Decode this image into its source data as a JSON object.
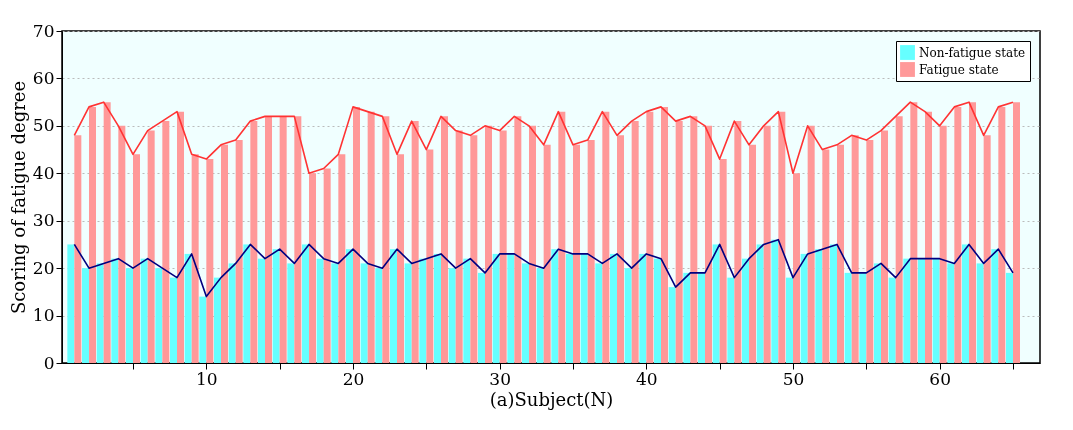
{
  "chart_data": {
    "type": "bar",
    "xlabel": "(a)Subject(N)",
    "ylabel": "Scoring of fatigue degree",
    "x": [
      1,
      2,
      3,
      4,
      5,
      6,
      7,
      8,
      9,
      10,
      11,
      12,
      13,
      14,
      15,
      16,
      17,
      18,
      19,
      20,
      21,
      22,
      23,
      24,
      25,
      26,
      27,
      28,
      29,
      30,
      31,
      32,
      33,
      34,
      35,
      36,
      37,
      38,
      39,
      40,
      41,
      42,
      43,
      44,
      45,
      46,
      47,
      48,
      49,
      50,
      51,
      52,
      53,
      54,
      55,
      56,
      57,
      58,
      59,
      60,
      61,
      62,
      63,
      64,
      65
    ],
    "series": [
      {
        "name": "Non-fatigue state",
        "color": "#66ffff",
        "values": [
          25,
          20,
          21,
          22,
          20,
          22,
          20,
          18,
          23,
          14,
          18,
          21,
          25,
          22,
          24,
          21,
          25,
          22,
          21,
          24,
          21,
          20,
          24,
          21,
          22,
          23,
          20,
          22,
          19,
          23,
          23,
          21,
          20,
          24,
          23,
          23,
          21,
          23,
          20,
          23,
          22,
          16,
          19,
          19,
          25,
          18,
          22,
          25,
          26,
          18,
          23,
          24,
          25,
          19,
          19,
          21,
          18,
          22,
          22,
          22,
          21,
          25,
          21,
          24,
          19
        ]
      },
      {
        "name": "Fatigue state",
        "color": "#ff9999",
        "values": [
          48,
          54,
          55,
          50,
          44,
          49,
          51,
          53,
          44,
          43,
          46,
          47,
          51,
          52,
          52,
          52,
          40,
          41,
          44,
          54,
          53,
          52,
          44,
          51,
          45,
          52,
          49,
          48,
          50,
          49,
          52,
          50,
          46,
          53,
          46,
          47,
          53,
          48,
          51,
          53,
          54,
          51,
          52,
          50,
          43,
          51,
          46,
          50,
          53,
          40,
          50,
          45,
          46,
          48,
          47,
          49,
          52,
          55,
          53,
          50,
          54,
          55,
          48,
          54,
          55
        ]
      },
      {
        "type": "line",
        "color": "#000080",
        "values": [
          25,
          20,
          21,
          22,
          20,
          22,
          20,
          18,
          23,
          14,
          18,
          21,
          25,
          22,
          24,
          21,
          25,
          22,
          21,
          24,
          21,
          20,
          24,
          21,
          22,
          23,
          20,
          22,
          19,
          23,
          23,
          21,
          20,
          24,
          23,
          23,
          21,
          23,
          20,
          23,
          22,
          16,
          19,
          19,
          25,
          18,
          22,
          25,
          26,
          18,
          23,
          24,
          25,
          19,
          19,
          21,
          18,
          22,
          22,
          22,
          21,
          25,
          21,
          24,
          19
        ]
      },
      {
        "type": "line",
        "color": "#ff3333",
        "values": [
          48,
          54,
          55,
          50,
          44,
          49,
          51,
          53,
          44,
          43,
          46,
          47,
          51,
          52,
          52,
          52,
          40,
          41,
          44,
          54,
          53,
          52,
          44,
          51,
          45,
          52,
          49,
          48,
          50,
          49,
          52,
          50,
          46,
          53,
          46,
          47,
          53,
          48,
          51,
          53,
          54,
          51,
          52,
          50,
          43,
          51,
          46,
          50,
          53,
          40,
          50,
          45,
          46,
          48,
          47,
          49,
          52,
          55,
          53,
          50,
          54,
          55,
          48,
          54,
          55
        ]
      }
    ],
    "xlim": [
      0.5,
      66.5
    ],
    "xticks": [
      {
        "value": 5,
        "label": null
      },
      10,
      {
        "value": 15,
        "label": null
      },
      20,
      {
        "value": 25,
        "label": null
      },
      30,
      {
        "value": 35,
        "label": null
      },
      40,
      {
        "value": 45,
        "label": null
      },
      50,
      {
        "value": 55,
        "label": null
      },
      60,
      {
        "value": 65,
        "label": null
      }
    ],
    "ylim": [
      0,
      70
    ],
    "yticks": [
      0,
      10,
      20,
      30,
      40,
      50,
      60,
      70
    ],
    "grid": "y",
    "legend": "top right"
  }
}
